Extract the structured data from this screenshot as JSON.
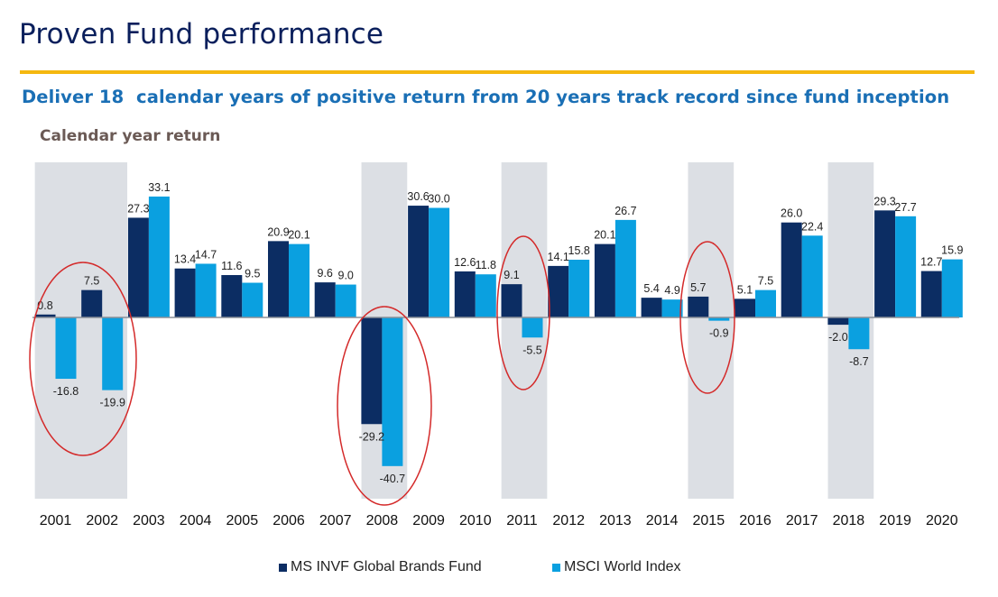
{
  "header": {
    "title": "Proven Fund performance",
    "subtitle": "Deliver 18  calendar years of positive return from 20 years track record since fund inception"
  },
  "chart_data": {
    "type": "bar",
    "title": "Calendar year return",
    "xlabel": "",
    "ylabel": "",
    "ylim": [
      -50,
      42
    ],
    "grid": false,
    "legend_position": "bottom",
    "categories": [
      "2001",
      "2002",
      "2003",
      "2004",
      "2005",
      "2006",
      "2007",
      "2008",
      "2009",
      "2010",
      "2011",
      "2012",
      "2013",
      "2014",
      "2015",
      "2016",
      "2017",
      "2018",
      "2019",
      "2020"
    ],
    "series": [
      {
        "name": "MS INVF Global Brands Fund",
        "color": "#0c2d63",
        "values": [
          0.8,
          7.5,
          27.3,
          13.4,
          11.6,
          20.9,
          9.6,
          -29.2,
          30.6,
          12.6,
          9.1,
          14.1,
          20.1,
          5.4,
          5.7,
          5.1,
          26.0,
          -2.0,
          29.3,
          12.7
        ],
        "labels": [
          "0.8",
          "7.5",
          "27.3",
          "13.4",
          "11.6",
          "20.9",
          "9.6",
          "-29.2",
          "30.6",
          "12.6",
          "9.1",
          "14.1",
          "20.1",
          "5.4",
          "5.7",
          "5.1",
          "26.0",
          "-2.0",
          "29.3",
          "12.7"
        ]
      },
      {
        "name": "MSCI World Index",
        "color": "#0aa0e0",
        "values": [
          -16.8,
          -19.9,
          33.1,
          14.7,
          9.5,
          20.1,
          9.0,
          -40.7,
          30.0,
          11.8,
          -5.5,
          15.8,
          26.7,
          4.9,
          -0.9,
          7.5,
          22.4,
          -8.7,
          27.7,
          15.9
        ],
        "labels": [
          "-16.8",
          "-19.9",
          "33.1",
          "14.7",
          "9.5",
          "20.1",
          "9.0",
          "-40.7",
          "30.0",
          "11.8",
          "-5.5",
          "15.8",
          "26.7",
          "4.9",
          "-0.9",
          "7.5",
          "22.4",
          "-8.7",
          "27.7",
          "15.9"
        ]
      }
    ],
    "highlighted_periods": [
      [
        "2001",
        "2002"
      ],
      [
        "2008"
      ],
      [
        "2011"
      ],
      [
        "2015"
      ],
      [
        "2018"
      ]
    ],
    "circled_periods": [
      [
        "2001",
        "2002"
      ],
      [
        "2008"
      ],
      [
        "2011"
      ],
      [
        "2015"
      ]
    ],
    "highlight_color": "#dcdfe4",
    "circle_color": "#d42a2a"
  }
}
